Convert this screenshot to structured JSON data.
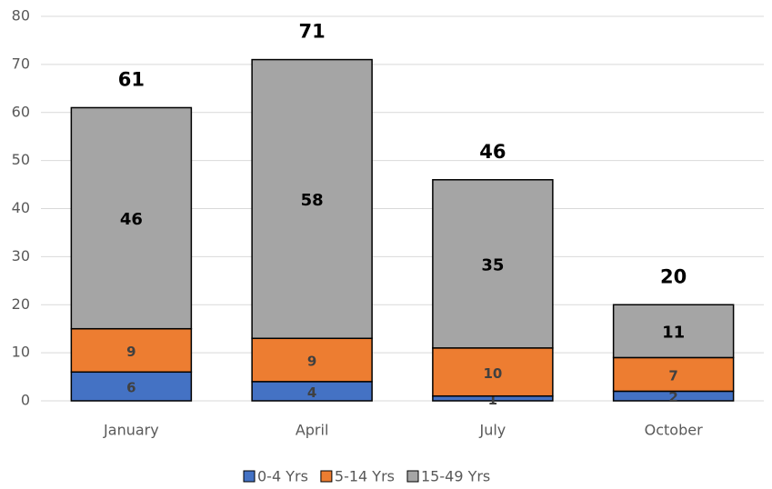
{
  "chart_data": {
    "type": "stacked_bar",
    "categories": [
      "January",
      "April",
      "July",
      "October"
    ],
    "series": [
      {
        "name": "0-4 Yrs",
        "color": "#4472c4",
        "values": [
          6,
          4,
          1,
          2
        ]
      },
      {
        "name": "5-14 Yrs",
        "color": "#ed7d31",
        "values": [
          9,
          9,
          10,
          7
        ]
      },
      {
        "name": "15-49 Yrs",
        "color": "#a5a5a5",
        "values": [
          46,
          58,
          35,
          11
        ]
      }
    ],
    "totals": [
      61,
      71,
      46,
      20
    ],
    "ylim": [
      0,
      80
    ],
    "yticks": [
      0,
      10,
      20,
      30,
      40,
      50,
      60,
      70,
      80
    ],
    "grid": true,
    "legend": "bottom"
  }
}
